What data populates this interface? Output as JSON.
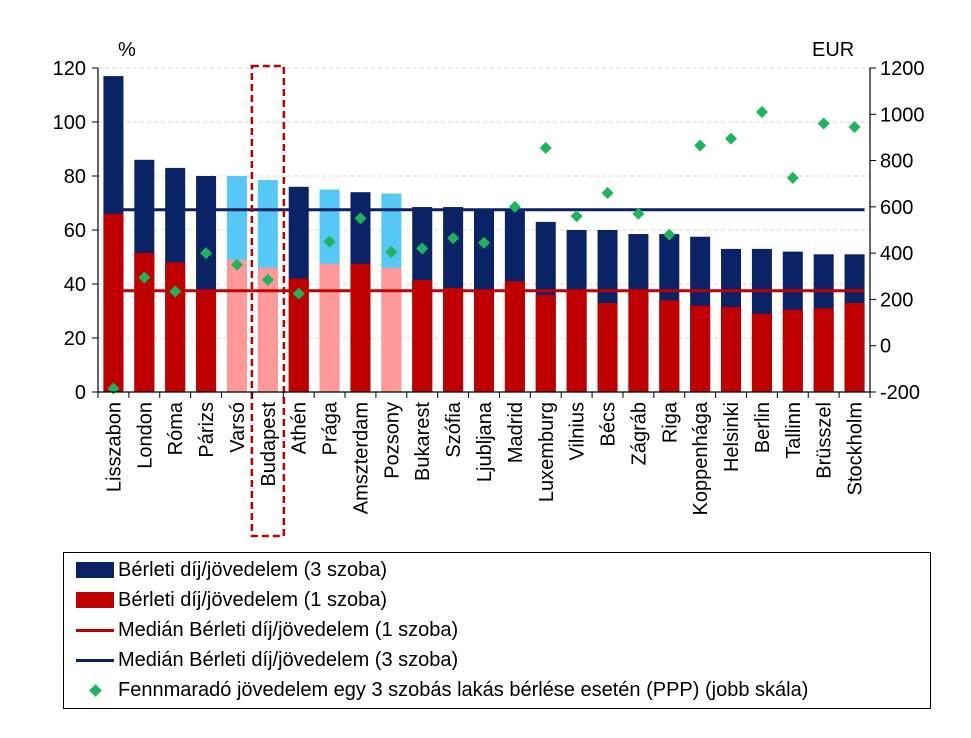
{
  "chart_data": {
    "type": "bar",
    "title": "",
    "left_axis_label": "%",
    "right_axis_label": "EUR",
    "left_ylim": [
      0,
      120
    ],
    "left_ticks": [
      0,
      20,
      40,
      60,
      80,
      100,
      120
    ],
    "right_ylim": [
      -200,
      1200
    ],
    "right_ticks": [
      -200,
      0,
      200,
      400,
      600,
      800,
      1000,
      1200
    ],
    "grid": true,
    "categories": [
      "Lisszabon",
      "London",
      "Róma",
      "Párizs",
      "Varsó",
      "Budapest",
      "Athén",
      "Prága",
      "Amszterdam",
      "Pozsony",
      "Bukarest",
      "Szófia",
      "Ljubljana",
      "Madrid",
      "Luxemburg",
      "Vilnius",
      "Bécs",
      "Zágráb",
      "Riga",
      "Koppenhága",
      "Helsinki",
      "Berlin",
      "Tallinn",
      "Brüsszel",
      "Stockholm"
    ],
    "highlight_light": [
      "Varsó",
      "Budapest",
      "Prága",
      "Pozsony"
    ],
    "highlight_box": "Budapest",
    "series": [
      {
        "name": "Bérleti díj/jövedelem (3 szoba)",
        "axis": "left",
        "kind": "bar",
        "values": [
          117,
          86,
          83,
          80,
          80,
          78.5,
          76,
          75,
          74,
          73.5,
          68.5,
          68.5,
          67.5,
          67,
          63,
          60,
          60,
          58.5,
          58.5,
          57.5,
          53,
          53,
          52,
          51,
          51
        ]
      },
      {
        "name": "Bérleti díj/jövedelem (1 szoba)",
        "axis": "left",
        "kind": "bar",
        "values": [
          66,
          51.5,
          48,
          38,
          49,
          46,
          42,
          47.5,
          47.5,
          46,
          41.5,
          38.5,
          37,
          41,
          36,
          38,
          33,
          38,
          34,
          32,
          31.5,
          29,
          30.5,
          31,
          33
        ]
      },
      {
        "name": "Medián Bérleti díj/jövedelem (1 szoba)",
        "axis": "left",
        "kind": "line",
        "value": 37.5
      },
      {
        "name": "Medián Bérleti díj/jövedelem (3 szoba)",
        "axis": "left",
        "kind": "line",
        "value": 67.5
      },
      {
        "name": "Fennmaradó jövedelem egy 3 szobás lakás bérlése esetén (PPP) (jobb skála)",
        "axis": "right",
        "kind": "scatter",
        "values": [
          -185,
          295,
          235,
          400,
          350,
          285,
          225,
          450,
          550,
          405,
          420,
          465,
          445,
          600,
          855,
          560,
          660,
          570,
          480,
          865,
          895,
          1010,
          725,
          960,
          945
        ]
      }
    ],
    "colors": {
      "bar3": "#0a2266",
      "bar3_light": "#55c8f6",
      "bar1": "#c00000",
      "bar1_light": "#ff9999",
      "median1": "#c00000",
      "median3": "#0a2266",
      "scatter": "#1bb55b",
      "highlight": "#c00000",
      "grid": "#d9d9d9"
    }
  },
  "legend": {
    "items": [
      {
        "label": "Bérleti díj/jövedelem (3 szoba)"
      },
      {
        "label": "Bérleti díj/jövedelem (1 szoba)"
      },
      {
        "label": "Medián Bérleti díj/jövedelem (1 szoba)"
      },
      {
        "label": "Medián Bérleti díj/jövedelem (3 szoba)"
      },
      {
        "label": "Fennmaradó jövedelem egy 3 szobás lakás bérlése esetén (PPP) (jobb skála)"
      }
    ]
  }
}
